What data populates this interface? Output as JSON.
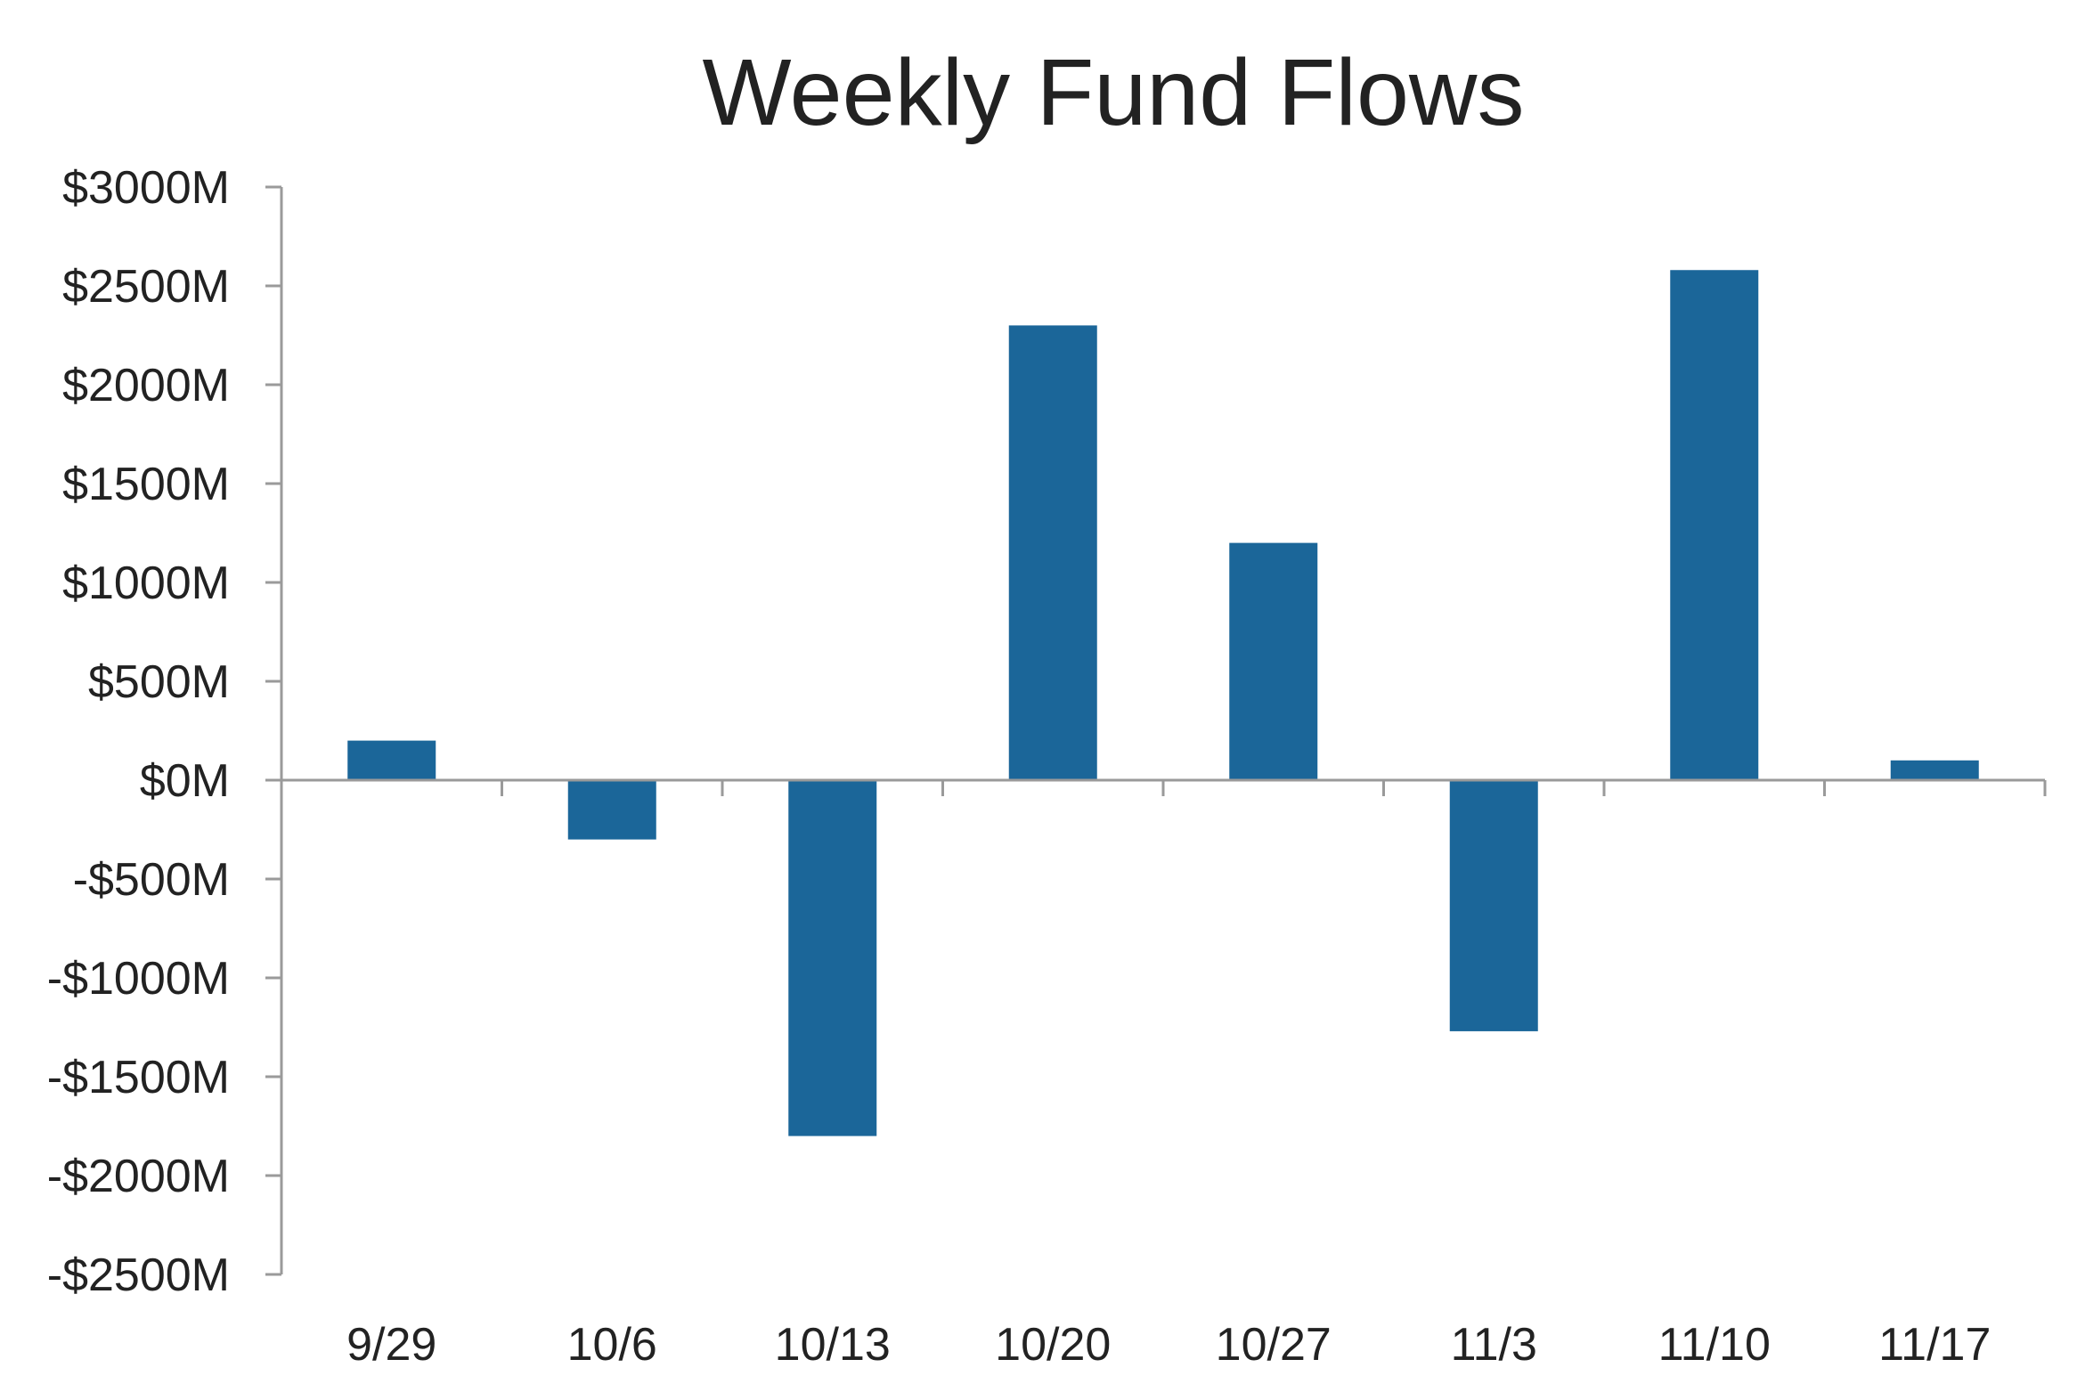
{
  "chart_data": {
    "type": "bar",
    "title": "Weekly Fund Flows",
    "xlabel": "",
    "ylabel": "",
    "categories": [
      "9/29",
      "10/6",
      "10/13",
      "10/20",
      "10/27",
      "11/3",
      "11/10",
      "11/17"
    ],
    "values": [
      200,
      -300,
      -1800,
      2300,
      1200,
      -1270,
      2580,
      100
    ],
    "ylim": [
      -2500,
      3000
    ],
    "y_ticks": [
      3000,
      2500,
      2000,
      1500,
      1000,
      500,
      0,
      -500,
      -1000,
      -1500,
      -2000,
      -2500
    ],
    "y_tick_labels": [
      "$3000M",
      "$2500M",
      "$2000M",
      "$1500M",
      "$1000M",
      "$500M",
      "$0M",
      "-$500M",
      "-$1000M",
      "-$1500M",
      "-$2000M",
      "-$2500M"
    ],
    "grid": false,
    "legend": "none",
    "bar_color": "#1b6699",
    "axis_color": "#9a9a9a"
  }
}
